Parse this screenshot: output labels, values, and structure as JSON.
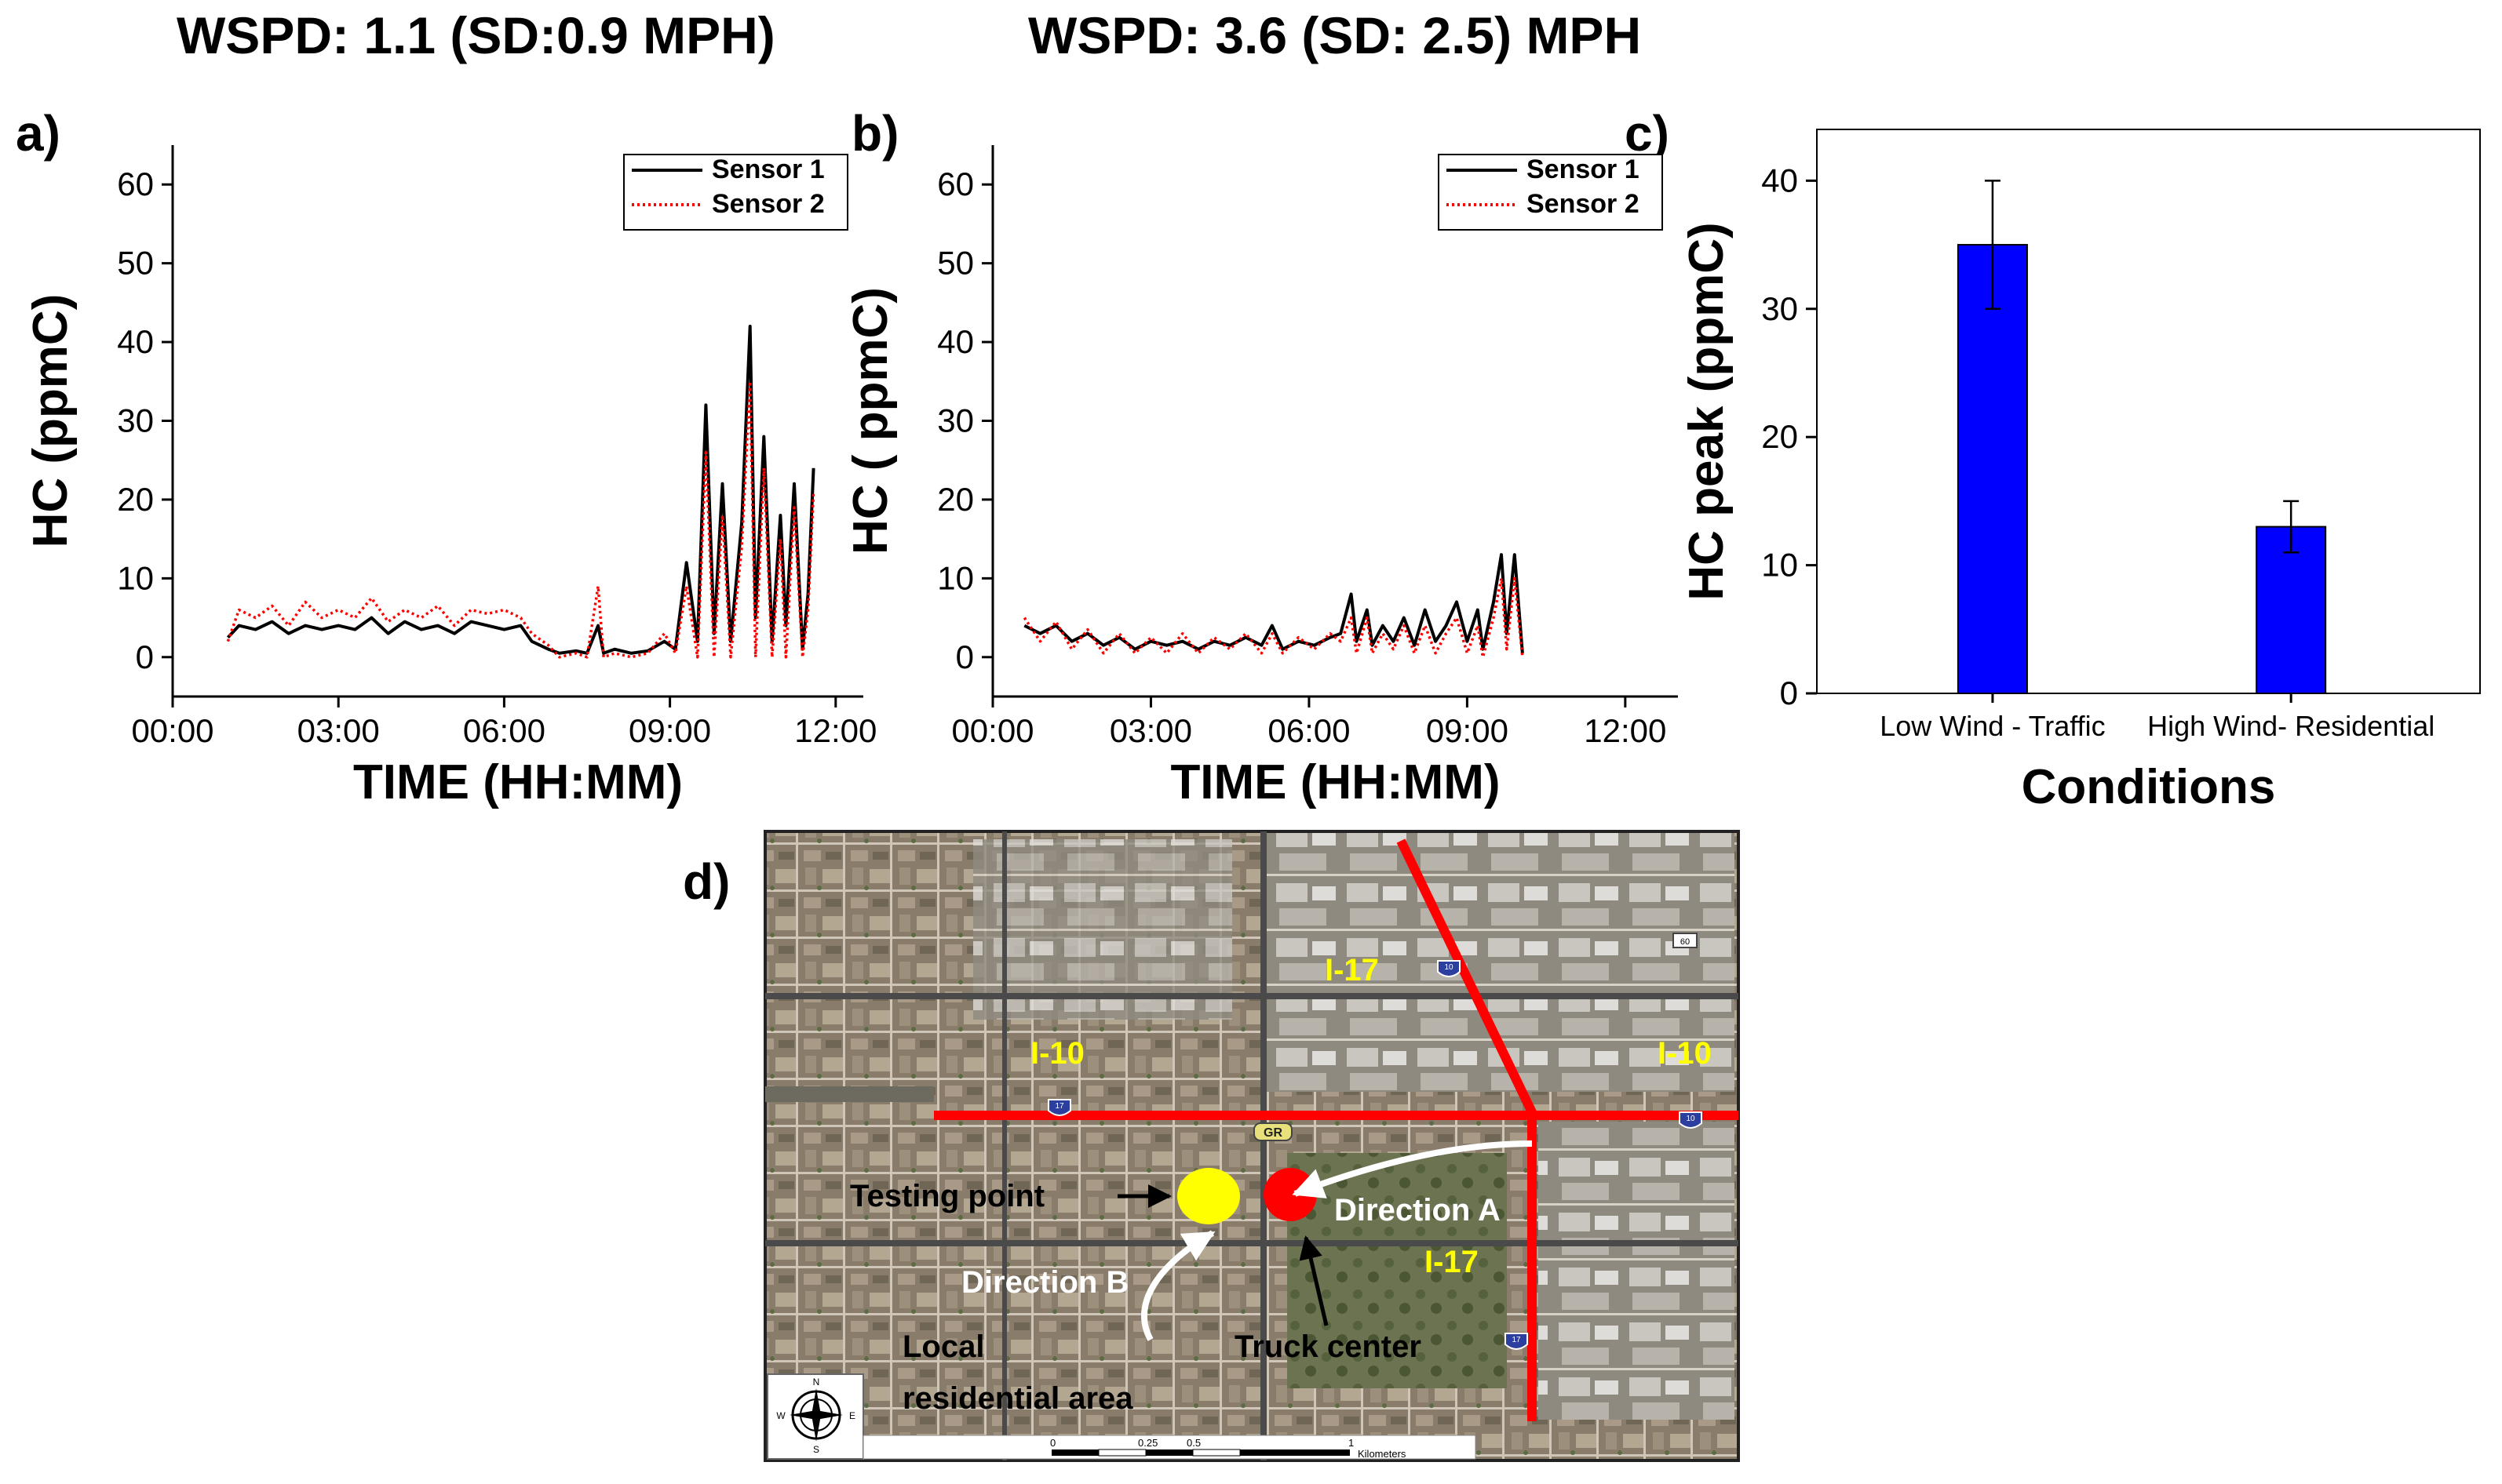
{
  "titles": {
    "left": "WSPD: 1.1 (SD:0.9 MPH)",
    "right": "WSPD:  3.6  (SD: 2.5) MPH"
  },
  "panel_labels": {
    "a": "a)",
    "b": "b)",
    "c": "c)",
    "d": "d)"
  },
  "colors": {
    "sensor1": "#000000",
    "sensor2": "#ff0000",
    "bar": "#0000ff",
    "map_label_yellow": "#ffff00",
    "highway_red": "#ff0000",
    "testing_point": "#ffff00",
    "truck_center": "#ff0000"
  },
  "chart_data": [
    {
      "id": "a",
      "type": "line",
      "xlabel": "TIME (HH:MM)",
      "ylabel": "HC (ppmC)",
      "x_ticks": [
        "00:00",
        "03:00",
        "06:00",
        "09:00",
        "12:00"
      ],
      "y_ticks": [
        "0",
        "10",
        "20",
        "30",
        "40",
        "50",
        "60"
      ],
      "xlim_hours": [
        0,
        12.5
      ],
      "ylim": [
        -5,
        65
      ],
      "legend": {
        "placement": "top-right",
        "entries": [
          "Sensor 1",
          "Sensor 2"
        ]
      },
      "series": [
        {
          "name": "Sensor 1",
          "style": "solid",
          "points": [
            [
              1.0,
              2.5
            ],
            [
              1.2,
              4
            ],
            [
              1.5,
              3.5
            ],
            [
              1.8,
              4.5
            ],
            [
              2.1,
              3
            ],
            [
              2.4,
              4
            ],
            [
              2.7,
              3.5
            ],
            [
              3.0,
              4
            ],
            [
              3.3,
              3.5
            ],
            [
              3.6,
              5
            ],
            [
              3.9,
              3
            ],
            [
              4.2,
              4.5
            ],
            [
              4.5,
              3.5
            ],
            [
              4.8,
              4
            ],
            [
              5.1,
              3
            ],
            [
              5.4,
              4.5
            ],
            [
              5.7,
              4
            ],
            [
              6.0,
              3.5
            ],
            [
              6.3,
              4
            ],
            [
              6.5,
              2
            ],
            [
              6.8,
              1
            ],
            [
              7.0,
              0.5
            ],
            [
              7.3,
              0.8
            ],
            [
              7.5,
              0.5
            ],
            [
              7.7,
              4
            ],
            [
              7.8,
              0.5
            ],
            [
              8.0,
              1
            ],
            [
              8.3,
              0.5
            ],
            [
              8.6,
              0.8
            ],
            [
              8.9,
              2
            ],
            [
              9.1,
              1
            ],
            [
              9.3,
              12
            ],
            [
              9.5,
              2
            ],
            [
              9.65,
              32
            ],
            [
              9.8,
              3
            ],
            [
              9.95,
              22
            ],
            [
              10.1,
              2
            ],
            [
              10.3,
              17
            ],
            [
              10.45,
              42
            ],
            [
              10.55,
              5
            ],
            [
              10.7,
              28
            ],
            [
              10.85,
              2
            ],
            [
              11.0,
              18
            ],
            [
              11.1,
              4
            ],
            [
              11.25,
              22
            ],
            [
              11.4,
              1
            ],
            [
              11.5,
              8
            ],
            [
              11.6,
              24
            ]
          ]
        },
        {
          "name": "Sensor 2",
          "style": "dotted",
          "points": [
            [
              1.0,
              2
            ],
            [
              1.2,
              6
            ],
            [
              1.5,
              5
            ],
            [
              1.8,
              6.5
            ],
            [
              2.1,
              4
            ],
            [
              2.4,
              7
            ],
            [
              2.7,
              5
            ],
            [
              3.0,
              6
            ],
            [
              3.3,
              5
            ],
            [
              3.6,
              7.5
            ],
            [
              3.9,
              4.5
            ],
            [
              4.2,
              6
            ],
            [
              4.5,
              5
            ],
            [
              4.8,
              6.5
            ],
            [
              5.1,
              4
            ],
            [
              5.4,
              6
            ],
            [
              5.7,
              5.5
            ],
            [
              6.0,
              6
            ],
            [
              6.3,
              5
            ],
            [
              6.5,
              3
            ],
            [
              6.8,
              1.5
            ],
            [
              7.0,
              0
            ],
            [
              7.3,
              0.5
            ],
            [
              7.5,
              0
            ],
            [
              7.7,
              9
            ],
            [
              7.8,
              0
            ],
            [
              8.0,
              0.5
            ],
            [
              8.3,
              0
            ],
            [
              8.6,
              0.5
            ],
            [
              8.9,
              3
            ],
            [
              9.1,
              0.5
            ],
            [
              9.3,
              9
            ],
            [
              9.5,
              0
            ],
            [
              9.65,
              26
            ],
            [
              9.8,
              0
            ],
            [
              9.95,
              18
            ],
            [
              10.1,
              0
            ],
            [
              10.3,
              14
            ],
            [
              10.45,
              35
            ],
            [
              10.55,
              0
            ],
            [
              10.7,
              24
            ],
            [
              10.85,
              0
            ],
            [
              11.0,
              15
            ],
            [
              11.1,
              0
            ],
            [
              11.25,
              19
            ],
            [
              11.4,
              0
            ],
            [
              11.5,
              6
            ],
            [
              11.6,
              21
            ]
          ]
        }
      ]
    },
    {
      "id": "b",
      "type": "line",
      "xlabel": "TIME (HH:MM)",
      "ylabel": "HC ( ppmC)",
      "x_ticks": [
        "00:00",
        "03:00",
        "06:00",
        "09:00",
        "12:00"
      ],
      "y_ticks": [
        "0",
        "10",
        "20",
        "30",
        "40",
        "50",
        "60"
      ],
      "xlim_hours": [
        0,
        13
      ],
      "ylim": [
        -5,
        65
      ],
      "legend": {
        "placement": "top-right",
        "entries": [
          "Sensor 1",
          "Sensor 2"
        ]
      },
      "series": [
        {
          "name": "Sensor 1",
          "style": "solid",
          "points": [
            [
              0.6,
              4
            ],
            [
              0.9,
              3
            ],
            [
              1.2,
              4
            ],
            [
              1.5,
              2
            ],
            [
              1.8,
              3
            ],
            [
              2.1,
              1.5
            ],
            [
              2.4,
              2.5
            ],
            [
              2.7,
              1
            ],
            [
              3.0,
              2
            ],
            [
              3.3,
              1.5
            ],
            [
              3.6,
              2
            ],
            [
              3.9,
              1
            ],
            [
              4.2,
              2
            ],
            [
              4.5,
              1.5
            ],
            [
              4.8,
              2.5
            ],
            [
              5.1,
              1.5
            ],
            [
              5.3,
              4
            ],
            [
              5.5,
              1
            ],
            [
              5.8,
              2
            ],
            [
              6.1,
              1.5
            ],
            [
              6.4,
              2.5
            ],
            [
              6.6,
              3
            ],
            [
              6.8,
              8
            ],
            [
              6.9,
              2
            ],
            [
              7.1,
              6
            ],
            [
              7.2,
              1.5
            ],
            [
              7.4,
              4
            ],
            [
              7.6,
              2
            ],
            [
              7.8,
              5
            ],
            [
              8.0,
              1.5
            ],
            [
              8.2,
              6
            ],
            [
              8.4,
              2
            ],
            [
              8.6,
              4
            ],
            [
              8.8,
              7
            ],
            [
              9.0,
              2
            ],
            [
              9.2,
              6
            ],
            [
              9.3,
              1
            ],
            [
              9.5,
              7
            ],
            [
              9.65,
              13
            ],
            [
              9.75,
              3
            ],
            [
              9.9,
              13
            ],
            [
              10.05,
              0.5
            ]
          ]
        },
        {
          "name": "Sensor 2",
          "style": "dotted",
          "points": [
            [
              0.6,
              5
            ],
            [
              0.9,
              2
            ],
            [
              1.2,
              4.5
            ],
            [
              1.5,
              1
            ],
            [
              1.8,
              3.5
            ],
            [
              2.1,
              0.5
            ],
            [
              2.4,
              3
            ],
            [
              2.7,
              0.5
            ],
            [
              3.0,
              2.5
            ],
            [
              3.3,
              0.5
            ],
            [
              3.6,
              3
            ],
            [
              3.9,
              0.5
            ],
            [
              4.2,
              2.5
            ],
            [
              4.5,
              1
            ],
            [
              4.8,
              3
            ],
            [
              5.1,
              0.5
            ],
            [
              5.3,
              3
            ],
            [
              5.5,
              0.5
            ],
            [
              5.8,
              2.5
            ],
            [
              6.1,
              1
            ],
            [
              6.4,
              3
            ],
            [
              6.6,
              2
            ],
            [
              6.8,
              5
            ],
            [
              6.9,
              0.5
            ],
            [
              7.1,
              5
            ],
            [
              7.2,
              0.5
            ],
            [
              7.4,
              3
            ],
            [
              7.6,
              1
            ],
            [
              7.8,
              4
            ],
            [
              8.0,
              0.5
            ],
            [
              8.2,
              4
            ],
            [
              8.4,
              0.5
            ],
            [
              8.6,
              3
            ],
            [
              8.8,
              5
            ],
            [
              9.0,
              0.5
            ],
            [
              9.2,
              4
            ],
            [
              9.3,
              0
            ],
            [
              9.5,
              5
            ],
            [
              9.65,
              10
            ],
            [
              9.75,
              1
            ],
            [
              9.9,
              10
            ],
            [
              10.05,
              0
            ]
          ]
        }
      ]
    },
    {
      "id": "c",
      "type": "bar",
      "xlabel": "Conditions",
      "ylabel": "HC peak (ppmC)",
      "categories": [
        "Low Wind - Traffic",
        "High Wind- Residential"
      ],
      "values": [
        35,
        13
      ],
      "errors": [
        5,
        2
      ],
      "y_ticks": [
        "0",
        "10",
        "20",
        "30",
        "40"
      ],
      "ylim": [
        0,
        44
      ]
    }
  ],
  "map": {
    "labels": {
      "i17_top": "I-17",
      "i10_left": "I-10",
      "i10_right": "I-10",
      "i17_bottom": "I-17",
      "gr": "GR",
      "testing_point": "Testing point",
      "direction_a": "Direction A",
      "direction_b": "Direction B",
      "truck_center": "Truck center",
      "local_line1": "Local",
      "local_line2": "residential area",
      "scale_0": "0",
      "scale_025": "0.25",
      "scale_05": "0.5",
      "scale_1": "1",
      "scale_unit": "Kilometers",
      "compass_n": "N",
      "compass_w": "W",
      "compass_e": "E",
      "compass_s": "S",
      "shield_1": "10",
      "shield_2": "17",
      "shield_3": "10",
      "shield_4": "17",
      "shield_5": "60"
    }
  }
}
